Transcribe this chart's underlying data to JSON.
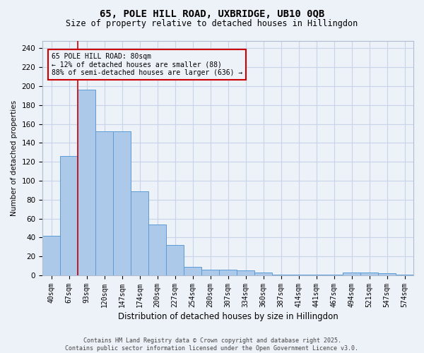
{
  "title_line1": "65, POLE HILL ROAD, UXBRIDGE, UB10 0QB",
  "title_line2": "Size of property relative to detached houses in Hillingdon",
  "xlabel": "Distribution of detached houses by size in Hillingdon",
  "ylabel": "Number of detached properties",
  "categories": [
    "40sqm",
    "67sqm",
    "93sqm",
    "120sqm",
    "147sqm",
    "174sqm",
    "200sqm",
    "227sqm",
    "254sqm",
    "280sqm",
    "307sqm",
    "334sqm",
    "360sqm",
    "387sqm",
    "414sqm",
    "441sqm",
    "467sqm",
    "494sqm",
    "521sqm",
    "547sqm",
    "574sqm"
  ],
  "bar_heights": [
    42,
    126,
    196,
    152,
    152,
    89,
    54,
    32,
    9,
    6,
    6,
    5,
    3,
    1,
    1,
    1,
    1,
    3,
    3,
    2,
    1
  ],
  "bar_color": "#adc9ea",
  "bar_edge_color": "#5b9bd5",
  "grid_color": "#c8d4e8",
  "background_color": "#edf1f8",
  "annotation_box_color": "#cc0000",
  "vline_x": 1.5,
  "annotation_text": "65 POLE HILL ROAD: 80sqm\n← 12% of detached houses are smaller (88)\n88% of semi-detached houses are larger (636) →",
  "footer_text": "Contains HM Land Registry data © Crown copyright and database right 2025.\nContains public sector information licensed under the Open Government Licence v3.0.",
  "ylim": [
    0,
    248
  ],
  "yticks": [
    0,
    20,
    40,
    60,
    80,
    100,
    120,
    140,
    160,
    180,
    200,
    220,
    240
  ],
  "figsize": [
    6.0,
    5.0
  ],
  "dpi": 100
}
